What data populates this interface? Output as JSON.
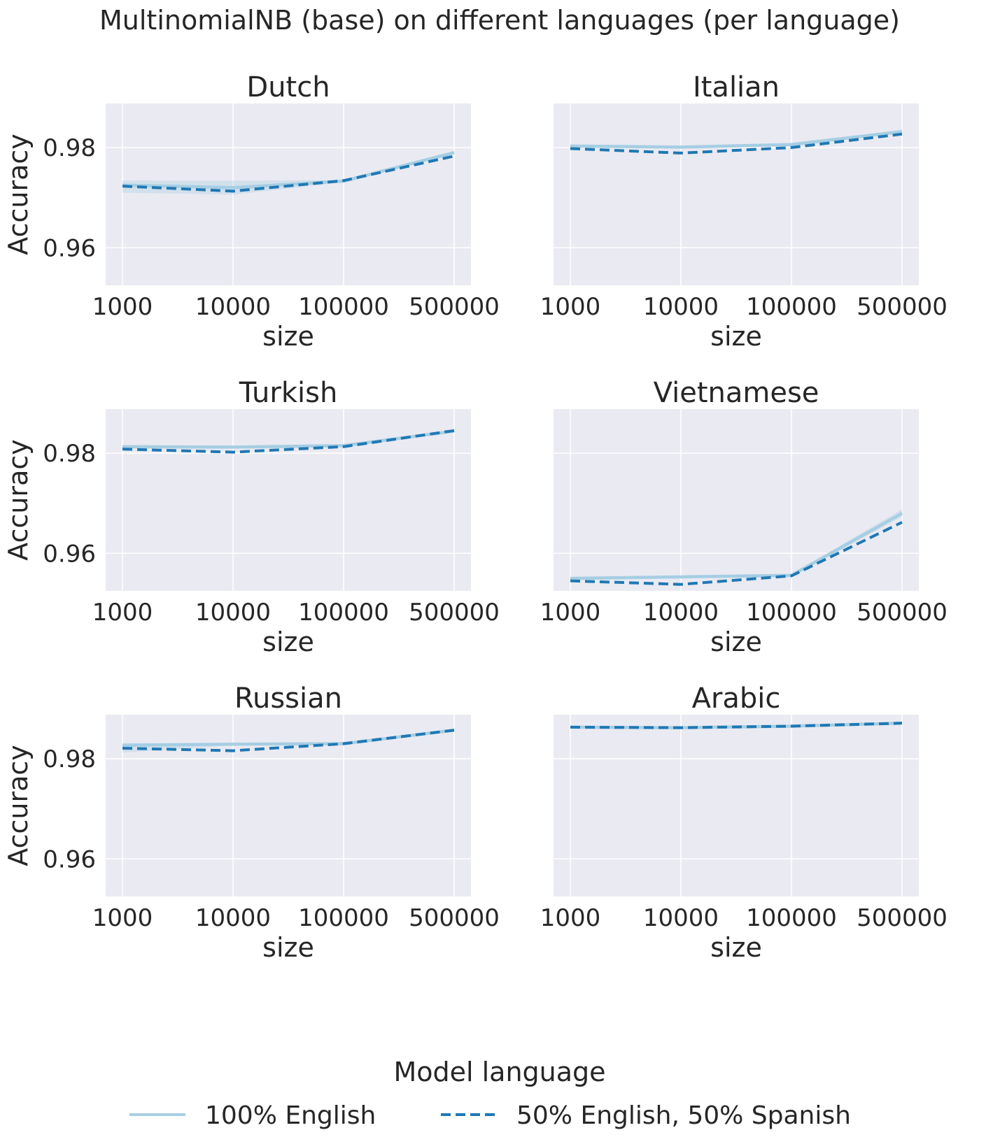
{
  "figure": {
    "suptitle": "MultinomialNB (base) on different languages (per language)",
    "legend_title": "Model language"
  },
  "colors": {
    "panel_bg": "#EAEAF2",
    "grid": "#FFFFFF",
    "text": "#262626",
    "series_light": "#A6CEE3",
    "series_dark": "#1F78B4"
  },
  "chart_data": [
    {
      "type": "line",
      "title": "Dutch",
      "xlabel": "size",
      "ylabel": "Accuracy",
      "x_scale": "categorical",
      "categories": [
        "1000",
        "10000",
        "100000",
        "500000"
      ],
      "ylim": [
        0.9525,
        0.9888
      ],
      "yticks": [
        "0.96",
        "0.98"
      ],
      "grid": true,
      "series": [
        {
          "name": "100% English",
          "values": [
            0.9725,
            0.972,
            0.9733,
            0.979
          ],
          "ci_low": [
            0.971,
            0.9706,
            0.9731,
            0.9788
          ],
          "ci_high": [
            0.9734,
            0.9734,
            0.9735,
            0.9792
          ],
          "style": "solid"
        },
        {
          "name": "50% English, 50% Spanish",
          "values": [
            0.9723,
            0.9713,
            0.9734,
            0.9783
          ],
          "style": "dashed"
        }
      ]
    },
    {
      "type": "line",
      "title": "Italian",
      "xlabel": "size",
      "ylabel": "",
      "x_scale": "categorical",
      "categories": [
        "1000",
        "10000",
        "100000",
        "500000"
      ],
      "ylim": [
        0.9525,
        0.9888
      ],
      "yticks": [
        "0.96",
        "0.98"
      ],
      "grid": true,
      "series": [
        {
          "name": "100% English",
          "values": [
            0.9803,
            0.9801,
            0.9806,
            0.9832
          ],
          "ci_low": [
            0.9801,
            0.9799,
            0.9804,
            0.983
          ],
          "ci_high": [
            0.9805,
            0.9803,
            0.9808,
            0.9834
          ],
          "style": "solid"
        },
        {
          "name": "50% English, 50% Spanish",
          "values": [
            0.9798,
            0.9789,
            0.98,
            0.9827
          ],
          "style": "dashed"
        }
      ]
    },
    {
      "type": "line",
      "title": "Turkish",
      "xlabel": "size",
      "ylabel": "Accuracy",
      "x_scale": "categorical",
      "categories": [
        "1000",
        "10000",
        "100000",
        "500000"
      ],
      "ylim": [
        0.9525,
        0.9888
      ],
      "yticks": [
        "0.96",
        "0.98"
      ],
      "grid": true,
      "series": [
        {
          "name": "100% English",
          "values": [
            0.9813,
            0.9812,
            0.9815,
            0.9844
          ],
          "ci_low": [
            0.9811,
            0.981,
            0.9813,
            0.9842
          ],
          "ci_high": [
            0.9815,
            0.9814,
            0.9817,
            0.9846
          ],
          "style": "solid"
        },
        {
          "name": "50% English, 50% Spanish",
          "values": [
            0.9808,
            0.9802,
            0.9813,
            0.9845
          ],
          "style": "dashed"
        }
      ]
    },
    {
      "type": "line",
      "title": "Vietnamese",
      "xlabel": "size",
      "ylabel": "",
      "x_scale": "categorical",
      "categories": [
        "1000",
        "10000",
        "100000",
        "500000"
      ],
      "ylim": [
        0.9525,
        0.9888
      ],
      "yticks": [
        "0.96",
        "0.98"
      ],
      "grid": true,
      "series": [
        {
          "name": "100% English",
          "values": [
            0.955,
            0.9553,
            0.9556,
            0.968
          ],
          "ci_low": [
            0.9548,
            0.9551,
            0.9554,
            0.9673
          ],
          "ci_high": [
            0.9552,
            0.9555,
            0.9558,
            0.9688
          ],
          "style": "solid"
        },
        {
          "name": "50% English, 50% Spanish",
          "values": [
            0.9545,
            0.9538,
            0.9555,
            0.9662
          ],
          "style": "dashed"
        }
      ]
    },
    {
      "type": "line",
      "title": "Russian",
      "xlabel": "size",
      "ylabel": "Accuracy",
      "x_scale": "categorical",
      "categories": [
        "1000",
        "10000",
        "100000",
        "500000"
      ],
      "ylim": [
        0.9525,
        0.9888
      ],
      "yticks": [
        "0.96",
        "0.98"
      ],
      "grid": true,
      "series": [
        {
          "name": "100% English",
          "values": [
            0.9827,
            0.9829,
            0.983,
            0.9857
          ],
          "ci_low": [
            0.9812,
            0.9827,
            0.9828,
            0.9855
          ],
          "ci_high": [
            0.9831,
            0.9831,
            0.9832,
            0.9859
          ],
          "style": "solid"
        },
        {
          "name": "50% English, 50% Spanish",
          "values": [
            0.9821,
            0.9816,
            0.983,
            0.9857
          ],
          "style": "dashed"
        }
      ]
    },
    {
      "type": "line",
      "title": "Arabic",
      "xlabel": "size",
      "ylabel": "",
      "x_scale": "categorical",
      "categories": [
        "1000",
        "10000",
        "100000",
        "500000"
      ],
      "ylim": [
        0.9525,
        0.9888
      ],
      "yticks": [
        "0.96",
        "0.98"
      ],
      "grid": true,
      "series": [
        {
          "name": "100% English",
          "values": [
            0.9863,
            0.9862,
            0.9865,
            0.9871
          ],
          "ci_low": [
            0.9861,
            0.986,
            0.9863,
            0.9869
          ],
          "ci_high": [
            0.9865,
            0.9864,
            0.9867,
            0.9873
          ],
          "style": "solid"
        },
        {
          "name": "50% English, 50% Spanish",
          "values": [
            0.9863,
            0.9862,
            0.9865,
            0.9871
          ],
          "style": "dashed"
        }
      ]
    }
  ],
  "legend": {
    "placement": "bottom-center",
    "entries": [
      {
        "label": "100% English",
        "style": "solid"
      },
      {
        "label": "50% English, 50% Spanish",
        "style": "dashed"
      }
    ]
  }
}
